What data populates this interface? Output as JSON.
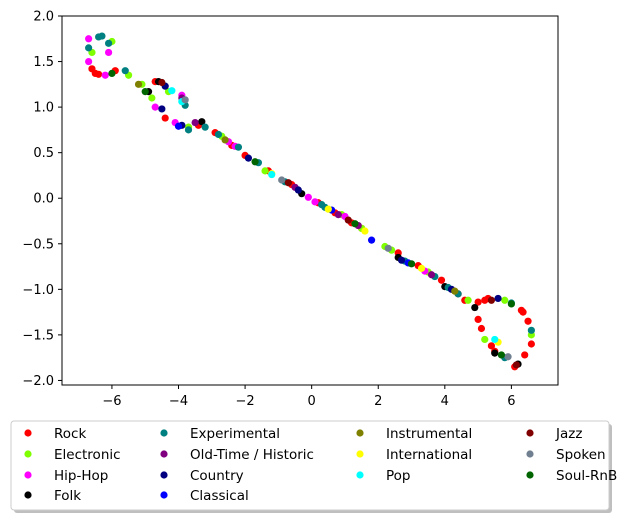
{
  "chart_data": {
    "type": "scatter",
    "title": "",
    "xlabel": "",
    "ylabel": "",
    "xlim": [
      -7.5,
      7.4
    ],
    "ylim": [
      -2.05,
      2.0
    ],
    "x_ticks": [
      -6,
      -4,
      -2,
      0,
      2,
      4,
      6
    ],
    "x_tick_labels": [
      "−6",
      "−4",
      "−2",
      "0",
      "2",
      "4",
      "6"
    ],
    "y_ticks": [
      2.0,
      1.5,
      1.0,
      0.5,
      0.0,
      -0.5,
      -1.0,
      -1.5,
      -2.0
    ],
    "y_tick_labels": [
      "2.0",
      "1.5",
      "1.0",
      "0.5",
      "0.0",
      "−0.5",
      "−1.0",
      "−1.5",
      "−2.0"
    ],
    "grid": false,
    "legend_placement": "bottom-center, outside plot, 4 columns",
    "series": [
      {
        "name": "Rock",
        "color": "#ff0000",
        "points": [
          [
            -6.5,
            1.37
          ],
          [
            -6.6,
            1.42
          ],
          [
            -6.4,
            1.36
          ],
          [
            -5.9,
            1.4
          ],
          [
            -4.7,
            1.28
          ],
          [
            -4.4,
            0.88
          ],
          [
            -3.4,
            0.8
          ],
          [
            -2.9,
            0.72
          ],
          [
            -2.4,
            0.58
          ],
          [
            -2.0,
            0.47
          ],
          [
            -1.3,
            0.3
          ],
          [
            -0.6,
            0.15
          ],
          [
            0.2,
            -0.05
          ],
          [
            0.7,
            -0.16
          ],
          [
            1.2,
            -0.27
          ],
          [
            1.5,
            -0.33
          ],
          [
            2.6,
            -0.6
          ],
          [
            3.2,
            -0.74
          ],
          [
            3.9,
            -0.9
          ],
          [
            4.4,
            -1.05
          ],
          [
            4.6,
            -1.12
          ],
          [
            5.0,
            -1.14
          ],
          [
            5.3,
            -1.1
          ],
          [
            5.2,
            -1.12
          ],
          [
            5.0,
            -1.33
          ],
          [
            5.1,
            -1.43
          ],
          [
            5.4,
            -1.62
          ],
          [
            5.5,
            -1.68
          ],
          [
            6.1,
            -1.85
          ],
          [
            6.4,
            -1.72
          ],
          [
            6.6,
            -1.6
          ],
          [
            6.5,
            -1.35
          ],
          [
            6.3,
            -1.23
          ],
          [
            6.35,
            -1.25
          ]
        ]
      },
      {
        "name": "Electronic",
        "color": "#7fff00",
        "points": [
          [
            -6.6,
            1.6
          ],
          [
            -6.0,
            1.72
          ],
          [
            -5.5,
            1.35
          ],
          [
            -5.1,
            1.25
          ],
          [
            -4.8,
            1.1
          ],
          [
            -4.3,
            1.17
          ],
          [
            -3.7,
            0.78
          ],
          [
            -2.7,
            0.68
          ],
          [
            -1.4,
            0.3
          ],
          [
            0.9,
            -0.18
          ],
          [
            1.5,
            -0.33
          ],
          [
            2.2,
            -0.53
          ],
          [
            2.4,
            -0.57
          ],
          [
            3.5,
            -0.81
          ],
          [
            4.7,
            -1.12
          ],
          [
            5.2,
            -1.55
          ],
          [
            5.8,
            -1.12
          ],
          [
            6.6,
            -1.5
          ]
        ]
      },
      {
        "name": "Hip-Hop",
        "color": "#ff00ff",
        "points": [
          [
            -6.7,
            1.75
          ],
          [
            -6.1,
            1.6
          ],
          [
            -6.7,
            1.5
          ],
          [
            -6.2,
            1.35
          ],
          [
            -4.7,
            1.0
          ],
          [
            -4.1,
            0.83
          ],
          [
            -3.9,
            1.13
          ],
          [
            -2.5,
            0.62
          ],
          [
            -2.3,
            0.57
          ],
          [
            -0.1,
            0.01
          ],
          [
            0.1,
            -0.04
          ],
          [
            1.0,
            -0.2
          ],
          [
            3.4,
            -0.8
          ]
        ]
      },
      {
        "name": "Folk",
        "color": "#000000",
        "points": [
          [
            -4.9,
            1.17
          ],
          [
            -4.6,
            1.28
          ],
          [
            -3.3,
            0.84
          ],
          [
            -0.3,
            0.05
          ],
          [
            2.6,
            -0.65
          ],
          [
            4.0,
            -0.97
          ],
          [
            4.9,
            -1.2
          ],
          [
            5.5,
            -1.7
          ],
          [
            6.2,
            -1.82
          ]
        ]
      },
      {
        "name": "Experimental",
        "color": "#008080",
        "points": [
          [
            -6.7,
            1.65
          ],
          [
            -6.4,
            1.77
          ],
          [
            -6.3,
            1.78
          ],
          [
            -6.1,
            1.7
          ],
          [
            -5.6,
            1.4
          ],
          [
            -3.8,
            1.02
          ],
          [
            -3.7,
            0.75
          ],
          [
            -3.2,
            0.78
          ],
          [
            -2.8,
            0.7
          ],
          [
            -2.2,
            0.56
          ],
          [
            -1.6,
            0.39
          ],
          [
            -0.8,
            0.18
          ],
          [
            0.3,
            -0.07
          ],
          [
            0.4,
            -0.1
          ],
          [
            2.8,
            -0.69
          ],
          [
            3.7,
            -0.86
          ],
          [
            4.4,
            -1.05
          ],
          [
            5.8,
            -1.75
          ],
          [
            6.6,
            -1.45
          ],
          [
            6.0,
            -1.15
          ],
          [
            4.1,
            -0.98
          ]
        ]
      },
      {
        "name": "Old-Time / Historic",
        "color": "#800080",
        "points": [
          [
            -3.9,
            1.1
          ],
          [
            -3.5,
            0.83
          ],
          [
            -0.5,
            0.12
          ],
          [
            0.8,
            -0.18
          ],
          [
            1.4,
            -0.3
          ],
          [
            3.6,
            -0.84
          ]
        ]
      },
      {
        "name": "Country",
        "color": "#000080",
        "points": [
          [
            -4.4,
            1.23
          ],
          [
            -4.5,
            0.98
          ],
          [
            -3.9,
            0.8
          ],
          [
            -1.9,
            0.44
          ],
          [
            -0.4,
            0.09
          ],
          [
            2.7,
            -0.68
          ],
          [
            4.2,
            -1.0
          ],
          [
            5.6,
            -1.1
          ]
        ]
      },
      {
        "name": "Classical",
        "color": "#0000ff",
        "points": [
          [
            -4.0,
            0.79
          ],
          [
            1.8,
            -0.46
          ],
          [
            2.9,
            -0.71
          ],
          [
            0.6,
            -0.13
          ]
        ]
      },
      {
        "name": "Instrumental",
        "color": "#808000",
        "points": [
          [
            -5.2,
            1.25
          ],
          [
            -2.6,
            0.64
          ],
          [
            4.3,
            -1.02
          ]
        ]
      },
      {
        "name": "International",
        "color": "#ffff00",
        "points": [
          [
            -1.2,
            0.27
          ],
          [
            0.5,
            -0.12
          ],
          [
            1.6,
            -0.36
          ],
          [
            3.3,
            -0.77
          ],
          [
            5.6,
            -1.58
          ]
        ]
      },
      {
        "name": "Pop",
        "color": "#00ffff",
        "points": [
          [
            -4.2,
            1.18
          ],
          [
            -3.9,
            1.06
          ],
          [
            -1.2,
            0.26
          ],
          [
            5.5,
            -1.55
          ]
        ]
      },
      {
        "name": "Jazz",
        "color": "#800000",
        "points": [
          [
            -4.5,
            1.27
          ],
          [
            -0.7,
            0.17
          ],
          [
            5.4,
            -1.12
          ],
          [
            6.15,
            -1.83
          ],
          [
            1.1,
            -0.24
          ]
        ]
      },
      {
        "name": "Spoken",
        "color": "#708090",
        "points": [
          [
            -3.8,
            1.08
          ],
          [
            2.3,
            -0.55
          ],
          [
            5.9,
            -1.74
          ],
          [
            -0.9,
            0.2
          ]
        ]
      },
      {
        "name": "Soul-RnB",
        "color": "#006400",
        "points": [
          [
            -6.0,
            1.37
          ],
          [
            -5.0,
            1.17
          ],
          [
            -1.7,
            0.4
          ],
          [
            1.3,
            -0.28
          ],
          [
            3.0,
            -0.72
          ],
          [
            5.7,
            -1.72
          ],
          [
            6.0,
            -1.16
          ]
        ]
      }
    ]
  }
}
